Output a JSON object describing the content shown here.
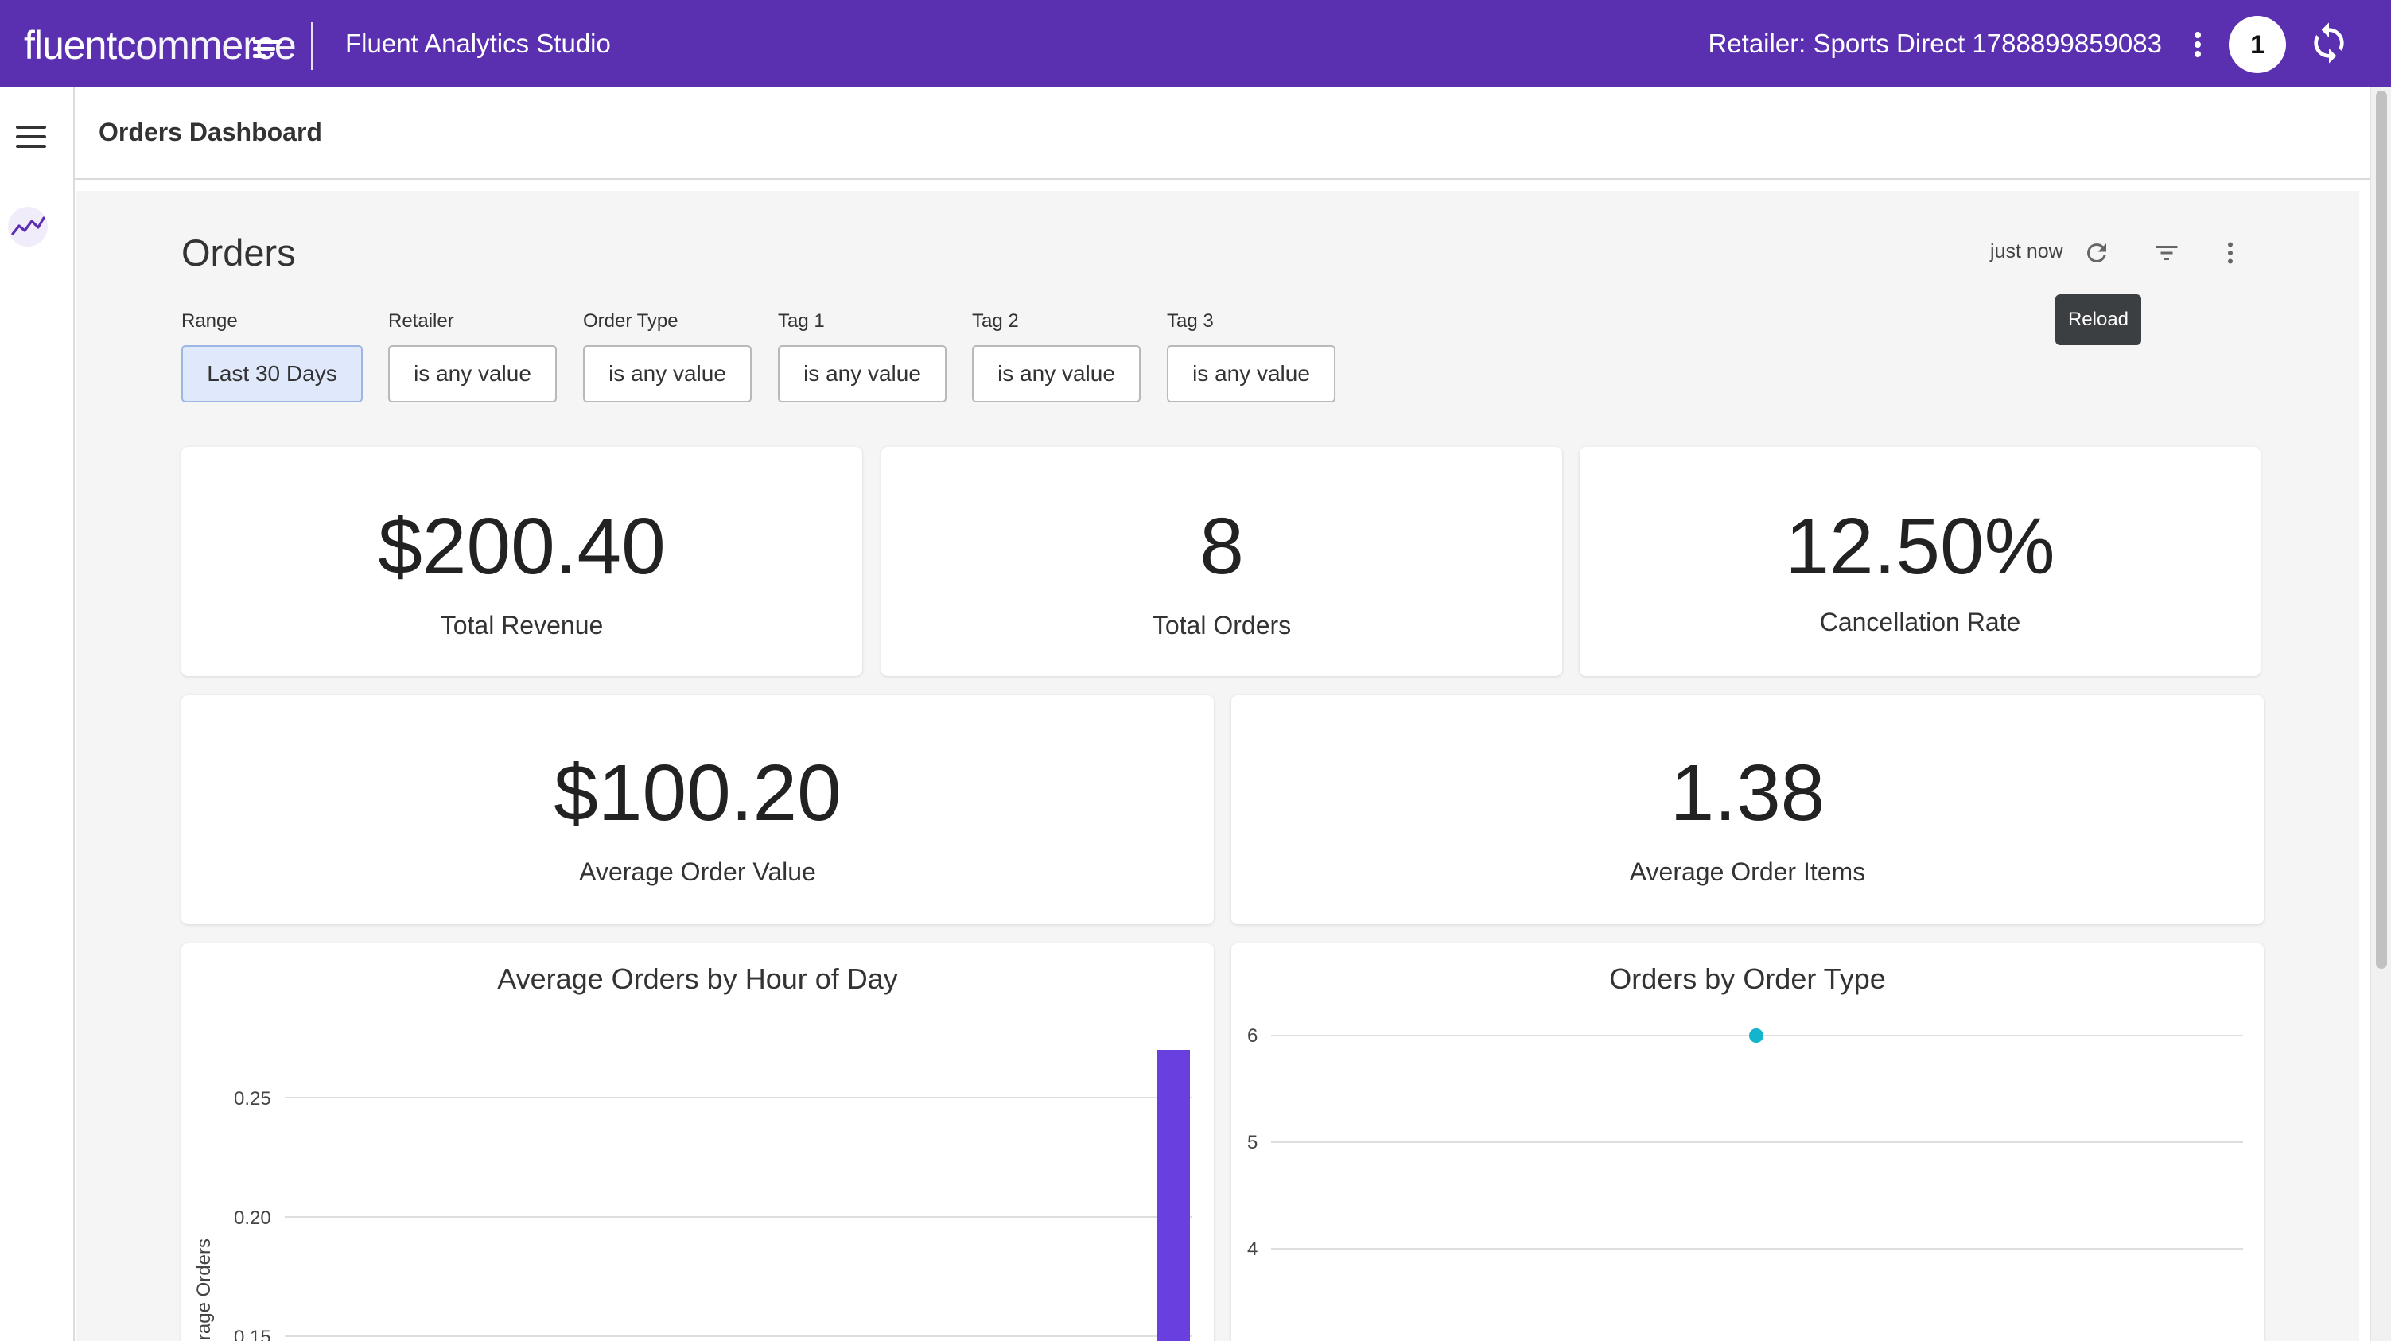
{
  "topbar": {
    "logo_bold": "fluent",
    "logo_light": "commerce",
    "app_title": "Fluent Analytics Studio",
    "retailer_label": "Retailer: Sports Direct 1788899859083",
    "avatar_text": "1",
    "brand_color": "#5a30b0"
  },
  "page": {
    "title": "Orders Dashboard"
  },
  "dashboard": {
    "title": "Orders",
    "updated": "just now",
    "tooltip": "Reload",
    "filters": [
      {
        "label": "Range",
        "value": "Last 30 Days"
      },
      {
        "label": "Retailer",
        "value": "is any value"
      },
      {
        "label": "Order Type",
        "value": "is any value"
      },
      {
        "label": "Tag 1",
        "value": "is any value"
      },
      {
        "label": "Tag 2",
        "value": "is any value"
      },
      {
        "label": "Tag 3",
        "value": "is any value"
      }
    ],
    "kpis": [
      {
        "value": "$200.40",
        "label": "Total Revenue"
      },
      {
        "value": "8",
        "label": "Total Orders"
      },
      {
        "value": "12.50%",
        "label": "Cancellation Rate"
      },
      {
        "value": "$100.20",
        "label": "Average Order Value"
      },
      {
        "value": "1.38",
        "label": "Average Order Items"
      }
    ]
  },
  "icons": {
    "menu": "hamburger-menu-icon",
    "analytics": "trending-up-icon",
    "more": "more-vert-icon",
    "sync": "sync-icon",
    "reload": "refresh-icon",
    "filter": "filter-list-icon"
  },
  "chart_data": [
    {
      "type": "bar",
      "title": "Average Orders by Hour of Day",
      "ylabel": "Average Orders",
      "yticks": [
        "0.25",
        "0.20",
        "0.15"
      ],
      "ylim_visible": [
        0.15,
        0.26
      ],
      "series": [
        {
          "values": [
            0.27
          ]
        }
      ],
      "bar_color": "#6a3fe0"
    },
    {
      "type": "scatter",
      "title": "Orders by Order Type",
      "yticks": [
        "6",
        "5",
        "4"
      ],
      "ylim_visible": [
        4,
        6
      ],
      "points": [
        {
          "y": 6
        }
      ],
      "point_color": "#12b5cb"
    }
  ]
}
